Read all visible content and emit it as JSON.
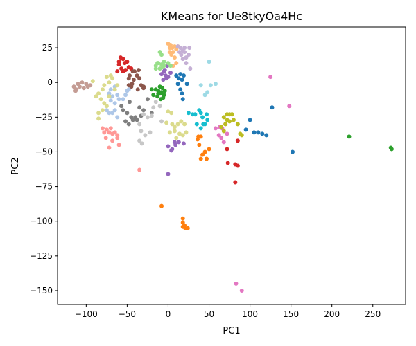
{
  "chart_data": {
    "type": "scatter",
    "title": "KMeans for Ue8tkyOa4Hc",
    "xlabel": "PC1",
    "ylabel": "PC2",
    "xlim": [
      -135,
      290
    ],
    "ylim": [
      -160,
      40
    ],
    "xticks": [
      -100,
      -50,
      0,
      50,
      100,
      150,
      200,
      250
    ],
    "yticks": [
      25,
      0,
      -25,
      -50,
      -75,
      -100,
      -125,
      -150
    ],
    "xtick_labels": [
      "−100",
      "−50",
      "0",
      "50",
      "100",
      "150",
      "200",
      "250"
    ],
    "ytick_labels": [
      "25",
      "0",
      "−25",
      "−50",
      "−75",
      "−100",
      "−125",
      "−150"
    ],
    "grid": false,
    "legend": "none",
    "series": [
      {
        "color": "#1f77b4",
        "points": [
          [
            10,
            5
          ],
          [
            13,
            3
          ],
          [
            15,
            6
          ],
          [
            17,
            2
          ],
          [
            19,
            5
          ],
          [
            12,
            -1
          ],
          [
            15,
            -5
          ],
          [
            17,
            -8
          ],
          [
            18,
            -12
          ],
          [
            23,
            -1
          ],
          [
            127,
            -18
          ],
          [
            100,
            -27
          ],
          [
            110,
            -36
          ],
          [
            115,
            -37
          ],
          [
            120,
            -38
          ],
          [
            105,
            -36
          ],
          [
            95,
            -34
          ],
          [
            152,
            -50
          ]
        ]
      },
      {
        "color": "#ff7f0e",
        "points": [
          [
            37,
            -39
          ],
          [
            40,
            -39
          ],
          [
            36,
            -41
          ],
          [
            38,
            -45
          ],
          [
            42,
            -52
          ],
          [
            45,
            -50
          ],
          [
            50,
            -48
          ],
          [
            40,
            -55
          ],
          [
            47,
            -55
          ],
          [
            18,
            -98
          ],
          [
            18,
            -101
          ],
          [
            20,
            -103
          ],
          [
            18,
            -104
          ],
          [
            21,
            -105
          ],
          [
            24,
            -105
          ],
          [
            -8,
            -89
          ]
        ]
      },
      {
        "color": "#2ca02c",
        "points": [
          [
            -15,
            -5
          ],
          [
            -12,
            -6
          ],
          [
            -10,
            -8
          ],
          [
            -8,
            -7
          ],
          [
            -5,
            -9
          ],
          [
            -13,
            -10
          ],
          [
            -7,
            -4
          ],
          [
            -4,
            -6
          ],
          [
            -10,
            -3
          ],
          [
            -12,
            -8
          ],
          [
            -6,
            -11
          ],
          [
            -20,
            -5
          ],
          [
            -18,
            -9
          ],
          [
            -9,
            -12
          ],
          [
            221,
            -39
          ],
          [
            272,
            -47
          ],
          [
            273,
            -48
          ]
        ]
      },
      {
        "color": "#d62728",
        "points": [
          [
            -58,
            18
          ],
          [
            -55,
            17
          ],
          [
            -50,
            15
          ],
          [
            -53,
            14
          ],
          [
            -60,
            13
          ],
          [
            -57,
            10
          ],
          [
            -52,
            9
          ],
          [
            -48,
            11
          ],
          [
            -62,
            8
          ],
          [
            -55,
            8
          ],
          [
            -45,
            10
          ],
          [
            -60,
            15
          ],
          [
            85,
            -42
          ],
          [
            72,
            -48
          ],
          [
            73,
            -58
          ],
          [
            82,
            -59
          ],
          [
            85,
            -60
          ],
          [
            82,
            -72
          ]
        ]
      },
      {
        "color": "#9467bd",
        "points": [
          [
            -5,
            8
          ],
          [
            -3,
            5
          ],
          [
            -8,
            6
          ],
          [
            -2,
            3
          ],
          [
            -6,
            2
          ],
          [
            0,
            4
          ],
          [
            -4,
            9
          ],
          [
            3,
            7
          ],
          [
            -1,
            12
          ],
          [
            0,
            -46
          ],
          [
            5,
            -48
          ],
          [
            4,
            -49
          ],
          [
            8,
            -43
          ],
          [
            9,
            -45
          ],
          [
            13,
            -43
          ],
          [
            19,
            -44
          ],
          [
            0,
            -66
          ]
        ]
      },
      {
        "color": "#8c564b",
        "points": [
          [
            -45,
            -3
          ],
          [
            -48,
            -2
          ],
          [
            -42,
            2
          ],
          [
            -47,
            5
          ],
          [
            -43,
            8
          ],
          [
            -38,
            5
          ],
          [
            -35,
            3
          ],
          [
            -33,
            -2
          ],
          [
            -37,
            -5
          ],
          [
            -30,
            -4
          ],
          [
            -36,
            9
          ],
          [
            -41,
            8
          ],
          [
            -30,
            -3
          ],
          [
            -48,
            3
          ],
          [
            -44,
            -1
          ]
        ]
      },
      {
        "color": "#e377c2",
        "points": [
          [
            63,
            -32
          ],
          [
            66,
            -33
          ],
          [
            68,
            -35
          ],
          [
            62,
            -38
          ],
          [
            58,
            -33
          ],
          [
            70,
            -30
          ],
          [
            72,
            -37
          ],
          [
            65,
            -40
          ],
          [
            68,
            -43
          ],
          [
            125,
            4
          ],
          [
            148,
            -17
          ],
          [
            83,
            -145
          ],
          [
            90,
            -150
          ]
        ]
      },
      {
        "color": "#7f7f7f",
        "points": [
          [
            -55,
            -20
          ],
          [
            -50,
            -22
          ],
          [
            -45,
            -25
          ],
          [
            -52,
            -28
          ],
          [
            -40,
            -25
          ],
          [
            -48,
            -30
          ],
          [
            -43,
            -27
          ],
          [
            -38,
            -27
          ],
          [
            -35,
            -18
          ],
          [
            -30,
            -20
          ],
          [
            -33,
            -24
          ],
          [
            -57,
            -17
          ],
          [
            -47,
            -14
          ],
          [
            -25,
            -12
          ],
          [
            -20,
            -22
          ]
        ]
      },
      {
        "color": "#bcbd22",
        "points": [
          [
            72,
            -23
          ],
          [
            75,
            -23
          ],
          [
            78,
            -23
          ],
          [
            68,
            -25
          ],
          [
            72,
            -27
          ],
          [
            70,
            -30
          ],
          [
            75,
            -28
          ],
          [
            65,
            -32
          ],
          [
            68,
            -35
          ],
          [
            80,
            -27
          ],
          [
            85,
            -30
          ],
          [
            88,
            -37
          ],
          [
            90,
            -38
          ],
          [
            78,
            -23
          ]
        ]
      },
      {
        "color": "#17becf",
        "points": [
          [
            25,
            -22
          ],
          [
            30,
            -23
          ],
          [
            33,
            -23
          ],
          [
            38,
            -20
          ],
          [
            40,
            -22
          ],
          [
            42,
            -25
          ],
          [
            47,
            -23
          ],
          [
            48,
            -27
          ],
          [
            45,
            -30
          ],
          [
            43,
            -30
          ],
          [
            35,
            -30
          ],
          [
            40,
            -33
          ]
        ]
      },
      {
        "color": "#aec7e8",
        "points": [
          [
            -65,
            -3
          ],
          [
            -70,
            -5
          ],
          [
            -72,
            -8
          ],
          [
            -62,
            -9
          ],
          [
            -68,
            -10
          ],
          [
            -60,
            -12
          ],
          [
            -65,
            -15
          ],
          [
            -55,
            -12
          ],
          [
            -50,
            -6
          ],
          [
            -52,
            -9
          ],
          [
            -48,
            -5
          ],
          [
            -70,
            -13
          ],
          [
            -75,
            -20
          ],
          [
            -72,
            -22
          ],
          [
            -68,
            -22
          ],
          [
            -62,
            -25
          ],
          [
            -65,
            -20
          ]
        ]
      },
      {
        "color": "#ffbb78",
        "points": [
          [
            0,
            28
          ],
          [
            3,
            27
          ],
          [
            5,
            25
          ],
          [
            8,
            26
          ],
          [
            2,
            22
          ],
          [
            6,
            22
          ],
          [
            10,
            24
          ],
          [
            4,
            20
          ],
          [
            8,
            18
          ],
          [
            10,
            14
          ],
          [
            6,
            12
          ],
          [
            12,
            26
          ],
          [
            2,
            25
          ]
        ]
      },
      {
        "color": "#98df8a",
        "points": [
          [
            -10,
            22
          ],
          [
            -8,
            20
          ],
          [
            -5,
            15
          ],
          [
            -8,
            13
          ],
          [
            -12,
            14
          ],
          [
            -15,
            12
          ],
          [
            -10,
            10
          ],
          [
            -5,
            12
          ],
          [
            0,
            14
          ],
          [
            3,
            12
          ],
          [
            -15,
            10
          ],
          [
            -13,
            14
          ],
          [
            -7,
            11
          ]
        ]
      },
      {
        "color": "#ff9896",
        "points": [
          [
            -80,
            -33
          ],
          [
            -75,
            -34
          ],
          [
            -72,
            -36
          ],
          [
            -68,
            -37
          ],
          [
            -65,
            -36
          ],
          [
            -62,
            -38
          ],
          [
            -70,
            -33
          ],
          [
            -78,
            -36
          ],
          [
            -76,
            -40
          ],
          [
            -68,
            -42
          ],
          [
            -62,
            -40
          ],
          [
            -72,
            -47
          ],
          [
            -60,
            -45
          ],
          [
            -35,
            -63
          ]
        ]
      },
      {
        "color": "#c5b0d5",
        "points": [
          [
            12,
            26
          ],
          [
            15,
            25
          ],
          [
            18,
            23
          ],
          [
            16,
            20
          ],
          [
            20,
            22
          ],
          [
            22,
            18
          ],
          [
            25,
            20
          ],
          [
            18,
            17
          ],
          [
            26,
            25
          ],
          [
            22,
            14
          ],
          [
            27,
            10
          ],
          [
            20,
            25
          ],
          [
            14,
            22
          ]
        ]
      },
      {
        "color": "#c49c94",
        "points": [
          [
            -115,
            -3
          ],
          [
            -110,
            -1
          ],
          [
            -105,
            0
          ],
          [
            -100,
            -1
          ],
          [
            -95,
            -2
          ],
          [
            -112,
            -5
          ],
          [
            -108,
            -3
          ],
          [
            -103,
            -4
          ],
          [
            -98,
            -3
          ],
          [
            -113,
            -6
          ]
        ]
      },
      {
        "color": "#dbdb8d",
        "points": [
          [
            -70,
            5
          ],
          [
            -75,
            4
          ],
          [
            -68,
            3
          ],
          [
            -72,
            0
          ],
          [
            -78,
            -2
          ],
          [
            -80,
            -5
          ],
          [
            -85,
            -8
          ],
          [
            -88,
            -10
          ],
          [
            -82,
            -12
          ],
          [
            -78,
            -15
          ],
          [
            -75,
            -17
          ],
          [
            -80,
            -20
          ],
          [
            -85,
            -22
          ],
          [
            -72,
            -10
          ],
          [
            -65,
            -5
          ],
          [
            -92,
            1
          ],
          [
            -85,
            -26
          ],
          [
            -62,
            -2
          ]
        ]
      },
      {
        "color": "#c7c7c7",
        "points": [
          [
            -30,
            -23
          ],
          [
            -25,
            -25
          ],
          [
            -35,
            -30
          ],
          [
            -33,
            -35
          ],
          [
            -28,
            -38
          ],
          [
            -35,
            -42
          ],
          [
            -32,
            -44
          ],
          [
            -22,
            -36
          ],
          [
            -20,
            -24
          ],
          [
            -18,
            -18
          ],
          [
            -15,
            -14
          ],
          [
            -10,
            -17
          ],
          [
            -8,
            -28
          ]
        ]
      },
      {
        "color": "#dbdb8d",
        "points": [
          [
            0,
            -21
          ],
          [
            4,
            -22
          ],
          [
            -2,
            -29
          ],
          [
            5,
            -30
          ],
          [
            8,
            -32
          ],
          [
            12,
            -30
          ],
          [
            16,
            -28
          ],
          [
            20,
            -30
          ],
          [
            8,
            -35
          ],
          [
            2,
            -36
          ],
          [
            14,
            -37
          ],
          [
            18,
            -38
          ],
          [
            22,
            -36
          ],
          [
            10,
            -40
          ]
        ]
      },
      {
        "color": "#9edae5",
        "points": [
          [
            48,
            -7
          ],
          [
            52,
            -2
          ],
          [
            58,
            -1
          ],
          [
            45,
            -9
          ],
          [
            50,
            15
          ],
          [
            40,
            -2
          ]
        ]
      }
    ]
  }
}
